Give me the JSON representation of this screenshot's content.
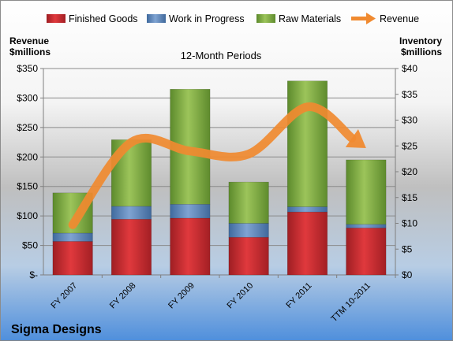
{
  "chart_data": {
    "type": "bar",
    "title": "12-Month Periods",
    "company": "Sigma Designs",
    "left_axis_label": [
      "Revenue",
      "$millions"
    ],
    "right_axis_label": [
      "Inventory",
      "$millions"
    ],
    "categories": [
      "FY 2007",
      "FY 2008",
      "FY 2009",
      "FY 2010",
      "FY 2011",
      "TTM 10-2011"
    ],
    "left_ticks": [
      "$-",
      "$50",
      "$100",
      "$150",
      "$200",
      "$250",
      "$300",
      "$350"
    ],
    "right_ticks": [
      "$0",
      "$5",
      "$10",
      "$15",
      "$20",
      "$25",
      "$30",
      "$35",
      "$40"
    ],
    "ylim_left": [
      0,
      350
    ],
    "ylim_right": [
      0,
      40
    ],
    "stacked": true,
    "series": [
      {
        "name": "Finished Goods",
        "axis": "right",
        "color": "#c0282e",
        "values": [
          6.5,
          10.8,
          11.0,
          7.3,
          12.2,
          9.1
        ]
      },
      {
        "name": "Work in Progress",
        "axis": "right",
        "color": "#4f81bd",
        "values": [
          1.6,
          2.5,
          2.7,
          2.7,
          1.0,
          0.7
        ]
      },
      {
        "name": "Raw Materials",
        "axis": "right",
        "color": "#78a63c",
        "values": [
          7.8,
          12.9,
          22.3,
          8.0,
          24.4,
          12.5
        ]
      },
      {
        "name": "Revenue",
        "axis": "left",
        "type": "line",
        "color": "#f08a30",
        "values": [
          85,
          225,
          210,
          205,
          285,
          215
        ]
      }
    ],
    "legend_position": "top",
    "grid": true
  }
}
